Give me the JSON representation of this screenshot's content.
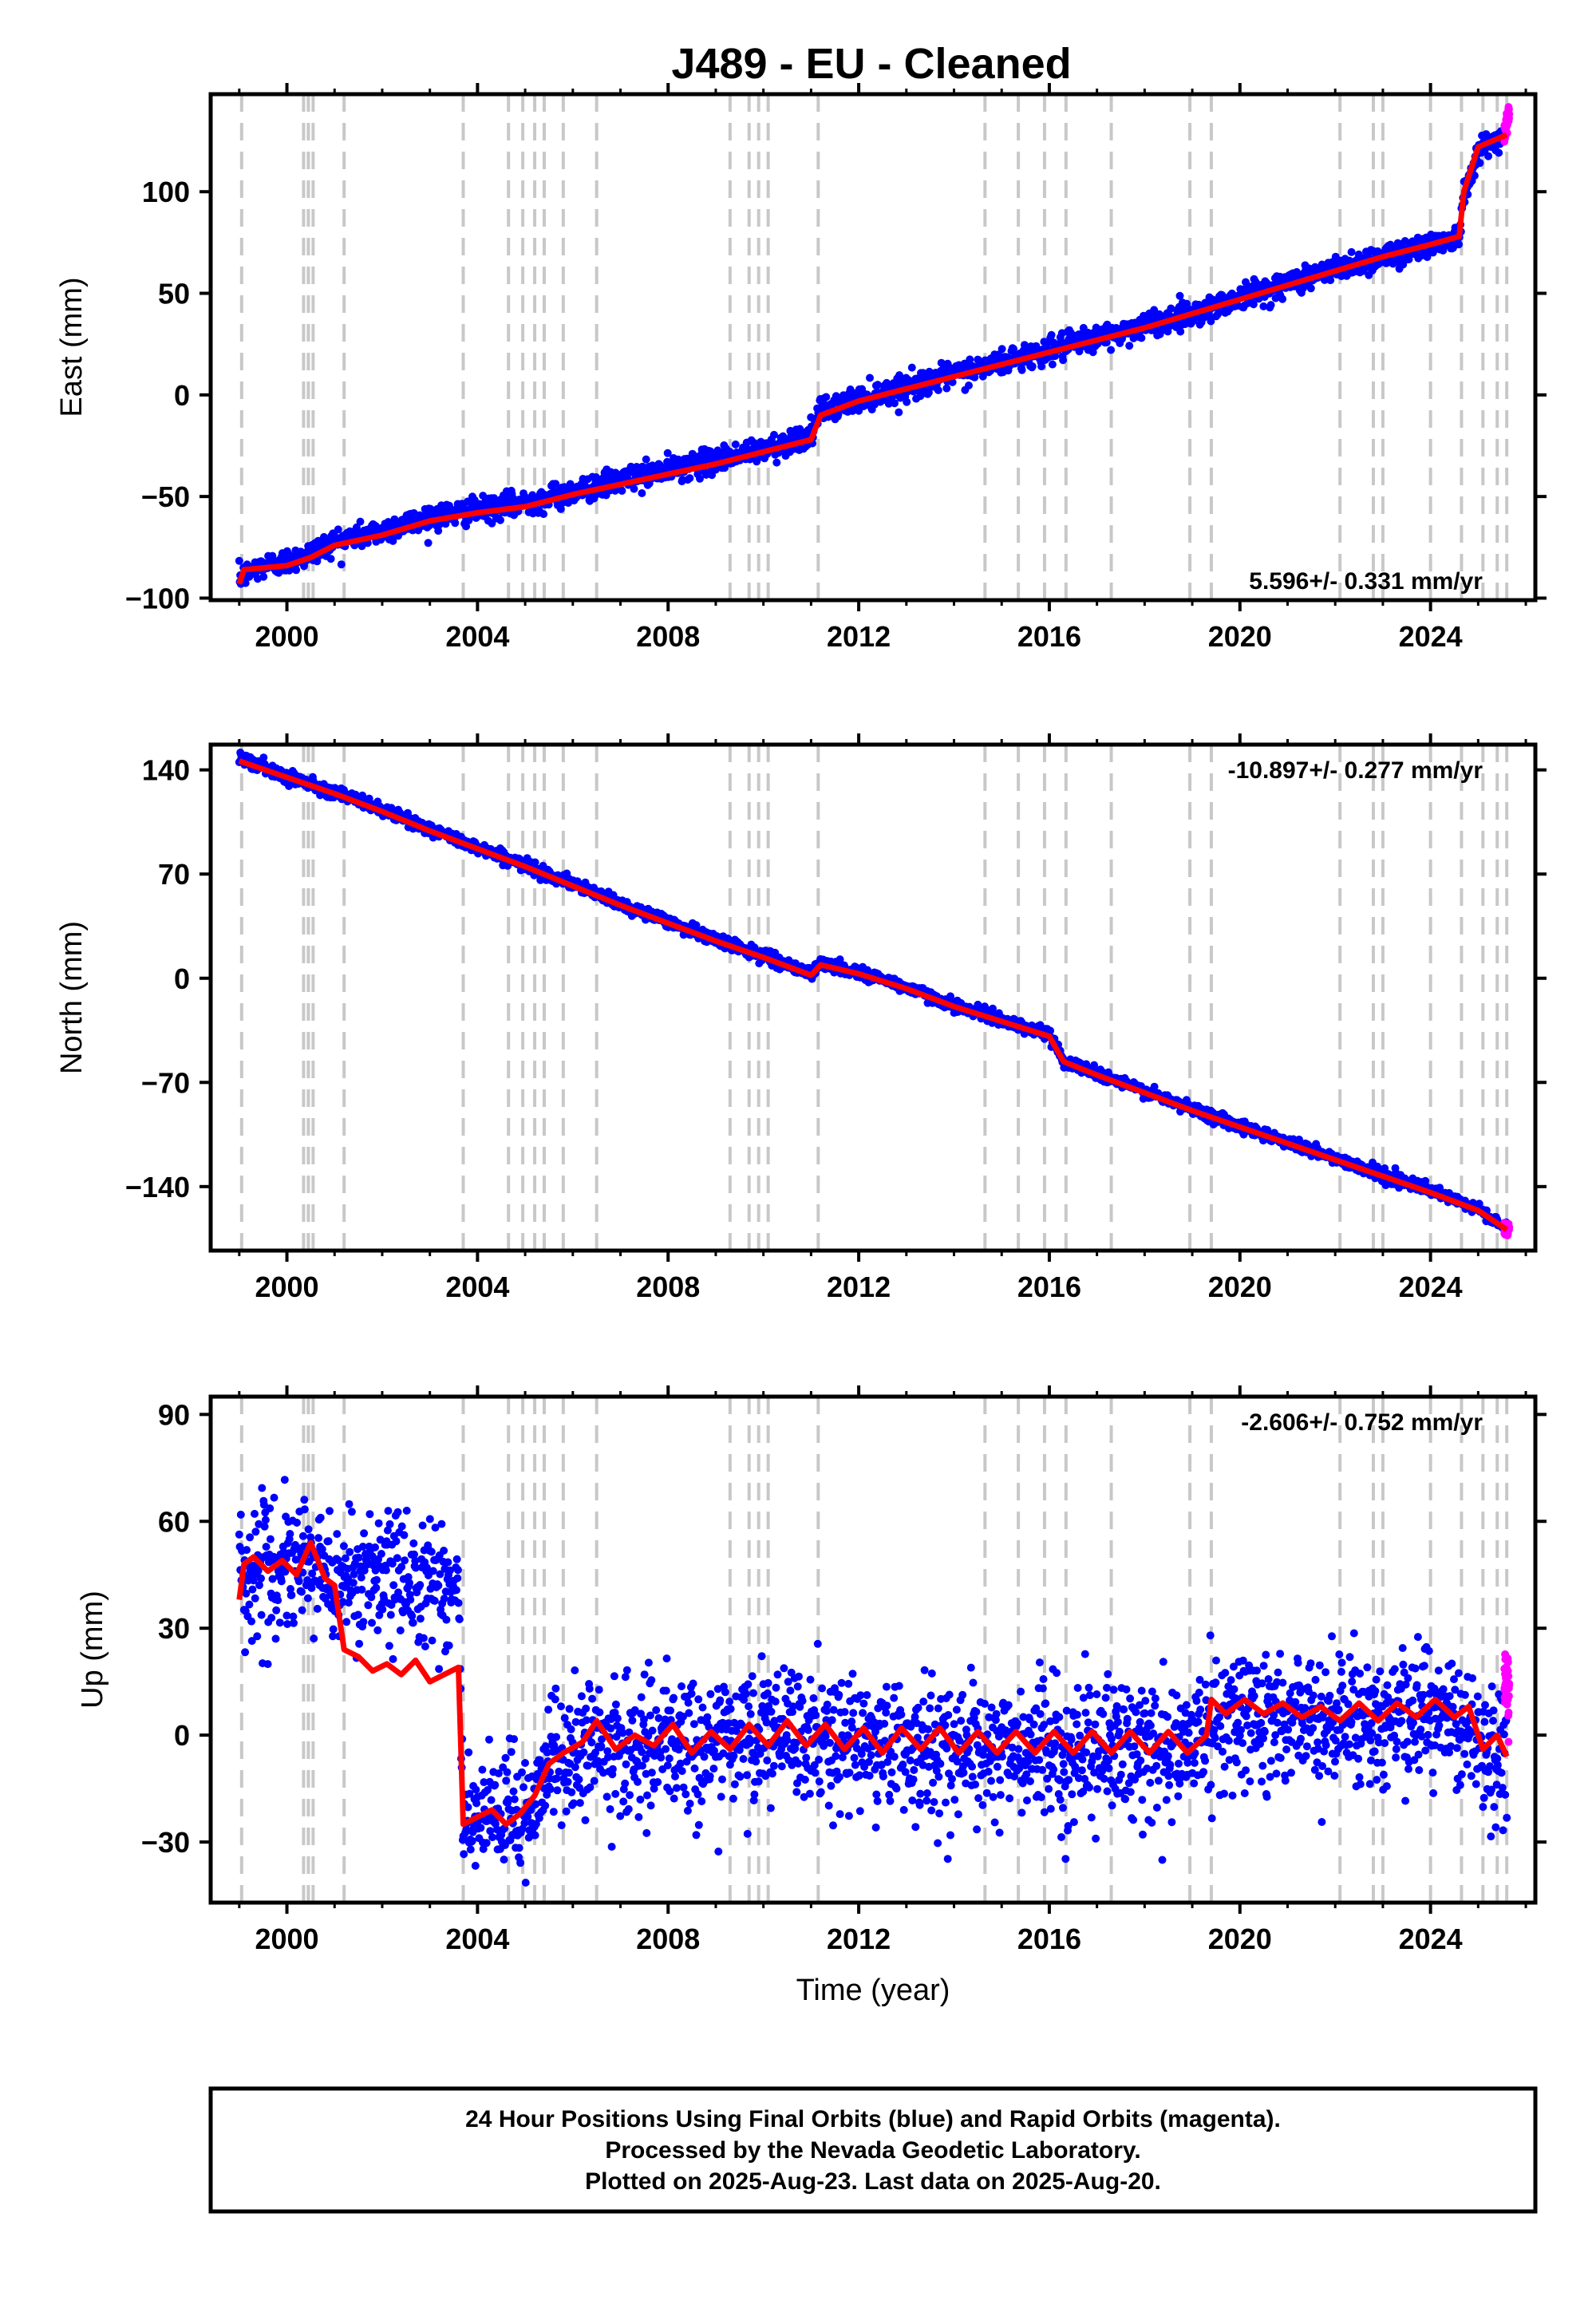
{
  "title": "J489  - EU - Cleaned",
  "colors": {
    "final_orbits": "#0000ff",
    "rapid_orbits": "#ff00ff",
    "model": "#ff0000",
    "event_lines": "#c8c8c8",
    "frame": "#000000"
  },
  "chart_data": [
    {
      "type": "scatter",
      "panel": "east",
      "ylabel": "East (mm)",
      "xlabel": "",
      "xlim": [
        1998.4,
        2026.2
      ],
      "ylim": [
        -101,
        148
      ],
      "xticks": [
        2000,
        2004,
        2008,
        2012,
        2016,
        2020,
        2024
      ],
      "xtick_labels": [
        "2000",
        "2004",
        "2008",
        "2012",
        "2016",
        "2020",
        "2024"
      ],
      "yticks": [
        -100,
        -50,
        0,
        50,
        100
      ],
      "ytick_labels": [
        "−100",
        "−50",
        "0",
        "50",
        "100"
      ],
      "rate_text": "5.596+/- 0.331 mm/yr",
      "series": [
        {
          "kind": "final_orbits",
          "x": [
            1999.0,
            1999.5,
            2000.0,
            2000.5,
            2001.0,
            2002.0,
            2003.0,
            2004.0,
            2005.0,
            2006.0,
            2007.0,
            2008.0,
            2009.0,
            2010.0,
            2011.0,
            2011.2,
            2012.0,
            2013.0,
            2014.0,
            2015.0,
            2016.0,
            2017.0,
            2018.0,
            2019.0,
            2020.0,
            2021.0,
            2022.0,
            2023.0,
            2024.0,
            2024.6,
            2024.7,
            2025.0,
            2025.5
          ],
          "y": [
            -90,
            -84,
            -82,
            -78,
            -72,
            -67,
            -60,
            -57,
            -53,
            -48,
            -42,
            -37,
            -32,
            -27,
            -20,
            -8,
            -2,
            4,
            10,
            16,
            22,
            28,
            34,
            40,
            48,
            55,
            62,
            68,
            74,
            78,
            100,
            120,
            127
          ],
          "scatter": 3
        },
        {
          "kind": "rapid_orbits",
          "x": [
            2025.55,
            2025.6,
            2025.65
          ],
          "y": [
            130,
            135,
            139
          ],
          "scatter": 3
        },
        {
          "kind": "model",
          "x": [
            1999.0,
            1999.1,
            2000.0,
            2000.5,
            2001.0,
            2002.0,
            2003.0,
            2004.0,
            2005.0,
            2006.0,
            2007.0,
            2008.0,
            2009.0,
            2010.0,
            2011.0,
            2011.2,
            2012.0,
            2013.0,
            2014.0,
            2015.0,
            2016.0,
            2017.0,
            2018.0,
            2019.0,
            2020.0,
            2021.0,
            2022.0,
            2023.0,
            2024.0,
            2024.6,
            2024.7,
            2025.0,
            2025.6
          ],
          "y": [
            -93,
            -86,
            -84,
            -80,
            -74,
            -69,
            -62,
            -58,
            -55,
            -49,
            -44,
            -39,
            -34,
            -28,
            -22,
            -10,
            -3,
            3,
            9,
            15,
            21,
            27,
            33,
            40,
            47,
            54,
            61,
            68,
            74,
            78,
            100,
            122,
            128
          ]
        }
      ]
    },
    {
      "type": "scatter",
      "panel": "north",
      "ylabel": "North (mm)",
      "xlabel": "",
      "xlim": [
        1998.4,
        2026.2
      ],
      "ylim": [
        -183,
        157
      ],
      "xticks": [
        2000,
        2004,
        2008,
        2012,
        2016,
        2020,
        2024
      ],
      "xtick_labels": [
        "2000",
        "2004",
        "2008",
        "2012",
        "2016",
        "2020",
        "2024"
      ],
      "yticks": [
        -140,
        -70,
        0,
        70,
        140
      ],
      "ytick_labels": [
        "−140",
        "−70",
        "0",
        "70",
        "140"
      ],
      "rate_text": "-10.897+/- 0.277 mm/yr",
      "series": [
        {
          "kind": "final_orbits",
          "x": [
            1999.0,
            2000.0,
            2001.0,
            2002.0,
            2003.0,
            2004.0,
            2005.0,
            2006.0,
            2007.0,
            2008.0,
            2009.0,
            2010.0,
            2011.0,
            2011.2,
            2012.0,
            2013.0,
            2014.0,
            2015.0,
            2016.0,
            2016.3,
            2017.0,
            2018.0,
            2019.0,
            2020.0,
            2021.0,
            2022.0,
            2023.0,
            2024.0,
            2025.0,
            2025.6
          ],
          "y": [
            148,
            136,
            125,
            113,
            100,
            88,
            76,
            63,
            50,
            38,
            26,
            15,
            3,
            10,
            4,
            -6,
            -18,
            -28,
            -38,
            -55,
            -64,
            -76,
            -88,
            -99,
            -110,
            -121,
            -132,
            -143,
            -155,
            -169
          ],
          "scatter": 2
        },
        {
          "kind": "rapid_orbits",
          "x": [
            2025.55,
            2025.6,
            2025.65
          ],
          "y": [
            -168,
            -170,
            -167
          ],
          "scatter": 2
        },
        {
          "kind": "model",
          "x": [
            1999.0,
            2000.0,
            2001.0,
            2002.0,
            2003.0,
            2004.0,
            2005.0,
            2006.0,
            2007.0,
            2008.0,
            2009.0,
            2010.0,
            2011.0,
            2011.2,
            2012.0,
            2013.0,
            2014.0,
            2015.0,
            2016.0,
            2016.3,
            2017.0,
            2018.0,
            2019.0,
            2020.0,
            2021.0,
            2022.0,
            2023.0,
            2024.0,
            2025.0,
            2025.6
          ],
          "y": [
            146,
            135,
            124,
            112,
            99,
            87,
            75,
            62,
            49,
            37,
            25,
            14,
            2,
            9,
            3,
            -7,
            -19,
            -29,
            -39,
            -56,
            -65,
            -77,
            -89,
            -100,
            -111,
            -122,
            -133,
            -144,
            -156,
            -169
          ]
        }
      ]
    },
    {
      "type": "scatter",
      "panel": "up",
      "ylabel": "Up (mm)",
      "xlabel": "Time (year)",
      "xlim": [
        1998.4,
        2026.2
      ],
      "ylim": [
        -47,
        95
      ],
      "xticks": [
        2000,
        2004,
        2008,
        2012,
        2016,
        2020,
        2024
      ],
      "xtick_labels": [
        "2000",
        "2004",
        "2008",
        "2012",
        "2016",
        "2020",
        "2024"
      ],
      "yticks": [
        -30,
        0,
        30,
        60,
        90
      ],
      "ytick_labels": [
        "−30",
        "0",
        "30",
        "60",
        "90"
      ],
      "rate_text": "-2.606+/- 0.752 mm/yr",
      "series": [
        {
          "kind": "final_orbits",
          "x": [
            1999.0,
            1999.5,
            2000.0,
            2000.5,
            2001.0,
            2001.2,
            2002.0,
            2003.0,
            2003.6,
            2003.7,
            2004.0,
            2005.0,
            2005.5,
            2006.0,
            2007.0,
            2008.0,
            2009.0,
            2010.0,
            2011.0,
            2012.0,
            2013.0,
            2014.0,
            2015.0,
            2016.0,
            2017.0,
            2018.0,
            2019.0,
            2019.4,
            2020.0,
            2021.0,
            2022.0,
            2023.0,
            2024.0,
            2025.0,
            2025.6
          ],
          "y": [
            45,
            48,
            44,
            50,
            42,
            45,
            43,
            45,
            40,
            -25,
            -25,
            -22,
            -8,
            -5,
            -3,
            -4,
            -2,
            0,
            -1,
            -2,
            -3,
            -4,
            -4,
            -5,
            -4,
            -3,
            -4,
            5,
            6,
            4,
            5,
            5,
            6,
            0,
            -8
          ],
          "scatter": 9
        },
        {
          "kind": "rapid_orbits",
          "x": [
            2025.55,
            2025.6,
            2025.65
          ],
          "y": [
            14,
            17,
            11
          ],
          "scatter": 4
        },
        {
          "kind": "model",
          "x": [
            1999.0,
            1999.1,
            1999.3,
            1999.6,
            1999.9,
            2000.2,
            2000.5,
            2000.8,
            2001.0,
            2001.2,
            2001.5,
            2001.8,
            2002.1,
            2002.4,
            2002.7,
            2003.0,
            2003.3,
            2003.6,
            2003.7,
            2004.0,
            2004.3,
            2004.6,
            2004.9,
            2005.2,
            2005.5,
            2005.8,
            2006.2,
            2006.5,
            2006.9,
            2007.3,
            2007.7,
            2008.1,
            2008.5,
            2008.9,
            2009.3,
            2009.7,
            2010.1,
            2010.5,
            2010.9,
            2011.3,
            2011.7,
            2012.1,
            2012.5,
            2012.9,
            2013.3,
            2013.7,
            2014.1,
            2014.5,
            2014.9,
            2015.3,
            2015.7,
            2016.1,
            2016.5,
            2016.9,
            2017.3,
            2017.7,
            2018.1,
            2018.5,
            2018.9,
            2019.3,
            2019.4,
            2019.7,
            2020.1,
            2020.5,
            2020.9,
            2021.3,
            2021.7,
            2022.1,
            2022.5,
            2022.9,
            2023.3,
            2023.7,
            2024.1,
            2024.5,
            2024.8,
            2025.1,
            2025.4,
            2025.6
          ],
          "y": [
            38,
            48,
            50,
            46,
            49,
            45,
            54,
            44,
            42,
            24,
            22,
            18,
            20,
            17,
            21,
            15,
            17,
            19,
            -25,
            -23,
            -21,
            -25,
            -22,
            -17,
            -8,
            -5,
            -2,
            4,
            -4,
            0,
            -3,
            3,
            -5,
            1,
            -4,
            3,
            -3,
            4,
            -3,
            3,
            -4,
            2,
            -5,
            2,
            -4,
            2,
            -5,
            1,
            -5,
            1,
            -5,
            1,
            -5,
            1,
            -5,
            1,
            -5,
            1,
            -5,
            0,
            10,
            6,
            10,
            6,
            9,
            5,
            8,
            4,
            9,
            4,
            9,
            5,
            10,
            5,
            8,
            -4,
            0,
            -6
          ]
        }
      ]
    }
  ],
  "event_lines_years": [
    1999.05,
    2000.35,
    2000.45,
    2000.55,
    2001.2,
    2003.7,
    2004.65,
    2004.95,
    2005.2,
    2005.4,
    2005.8,
    2006.5,
    2009.3,
    2009.7,
    2009.9,
    2010.1,
    2011.15,
    2014.65,
    2015.35,
    2015.9,
    2016.35,
    2017.3,
    2018.95,
    2019.4,
    2022.1,
    2022.8,
    2023.0,
    2024.0,
    2024.65,
    2025.1,
    2025.4,
    2025.6
  ],
  "footer": {
    "line1": "24 Hour Positions Using Final Orbits (blue) and Rapid Orbits (magenta).",
    "line2": "Processed by the Nevada Geodetic Laboratory.",
    "line3": "Plotted on 2025-Aug-23. Last data on 2025-Aug-20."
  }
}
